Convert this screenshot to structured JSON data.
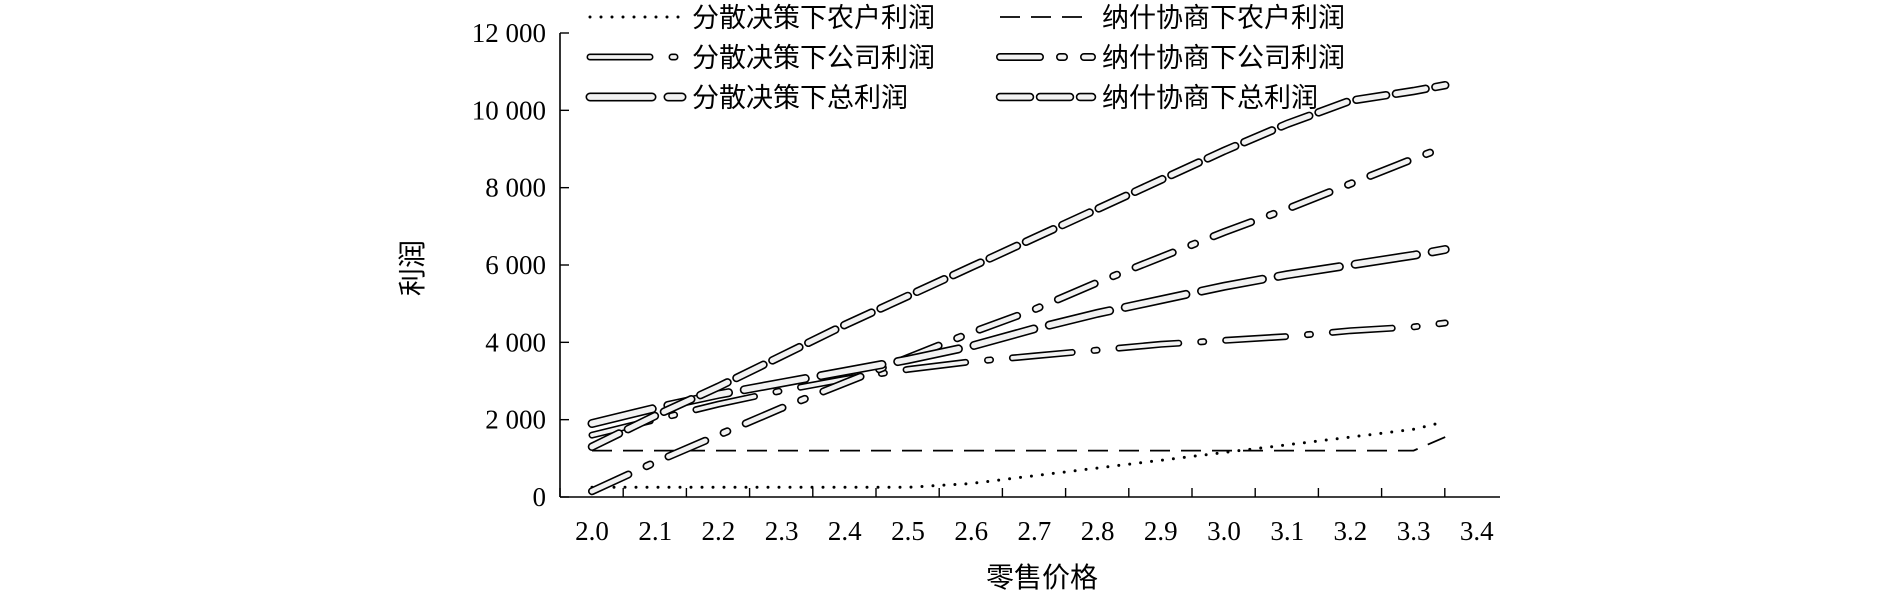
{
  "chart_data": {
    "type": "line",
    "xlabel": "零售价格",
    "ylabel": "利润",
    "xlim": [
      2.0,
      3.4
    ],
    "ylim": [
      0,
      12000
    ],
    "x_ticks": [
      "2.0",
      "2.1",
      "2.2",
      "2.3",
      "2.4",
      "2.5",
      "2.6",
      "2.7",
      "2.8",
      "2.9",
      "3.0",
      "3.1",
      "3.2",
      "3.3",
      "3.4"
    ],
    "y_ticks": [
      "0",
      "2 000",
      "4 000",
      "6 000",
      "8 000",
      "10 000",
      "12 000"
    ],
    "x": [
      2.0,
      2.1,
      2.2,
      2.3,
      2.4,
      2.5,
      2.6,
      2.7,
      2.8,
      2.9,
      3.0,
      3.1,
      3.2,
      3.3,
      3.35
    ],
    "grid": false,
    "legend_position": "top",
    "series": [
      {
        "name": "分散决策下农户利润",
        "style": "dotted",
        "values": [
          250,
          250,
          250,
          250,
          250,
          250,
          350,
          550,
          750,
          950,
          1150,
          1350,
          1550,
          1750,
          1950
        ]
      },
      {
        "name": "纳什协商下农户利润",
        "style": "dashed",
        "values": [
          1200,
          1200,
          1200,
          1200,
          1200,
          1200,
          1200,
          1200,
          1200,
          1200,
          1200,
          1200,
          1200,
          1200,
          1550
        ]
      },
      {
        "name": "分散决策下公司利润",
        "style": "double-dash-dot",
        "values": [
          1600,
          2000,
          2400,
          2750,
          3050,
          3300,
          3500,
          3650,
          3800,
          3950,
          4050,
          4150,
          4300,
          4400,
          4500
        ]
      },
      {
        "name": "纳什协商下公司利润",
        "style": "double-dash-dot-bold",
        "values": [
          150,
          900,
          1600,
          2300,
          2950,
          3600,
          4250,
          4850,
          5550,
          6200,
          6850,
          7450,
          8100,
          8750,
          9050
        ]
      },
      {
        "name": "分散决策下总利润",
        "style": "double-long-dash",
        "values": [
          1900,
          2300,
          2650,
          2950,
          3250,
          3550,
          3900,
          4350,
          4750,
          5100,
          5450,
          5750,
          6000,
          6250,
          6400
        ]
      },
      {
        "name": "纳什协商下总利润",
        "style": "double-short-dash",
        "values": [
          1300,
          2100,
          2850,
          3650,
          4450,
          5200,
          5950,
          6700,
          7450,
          8200,
          8950,
          9650,
          10250,
          10500,
          10650
        ]
      }
    ]
  }
}
